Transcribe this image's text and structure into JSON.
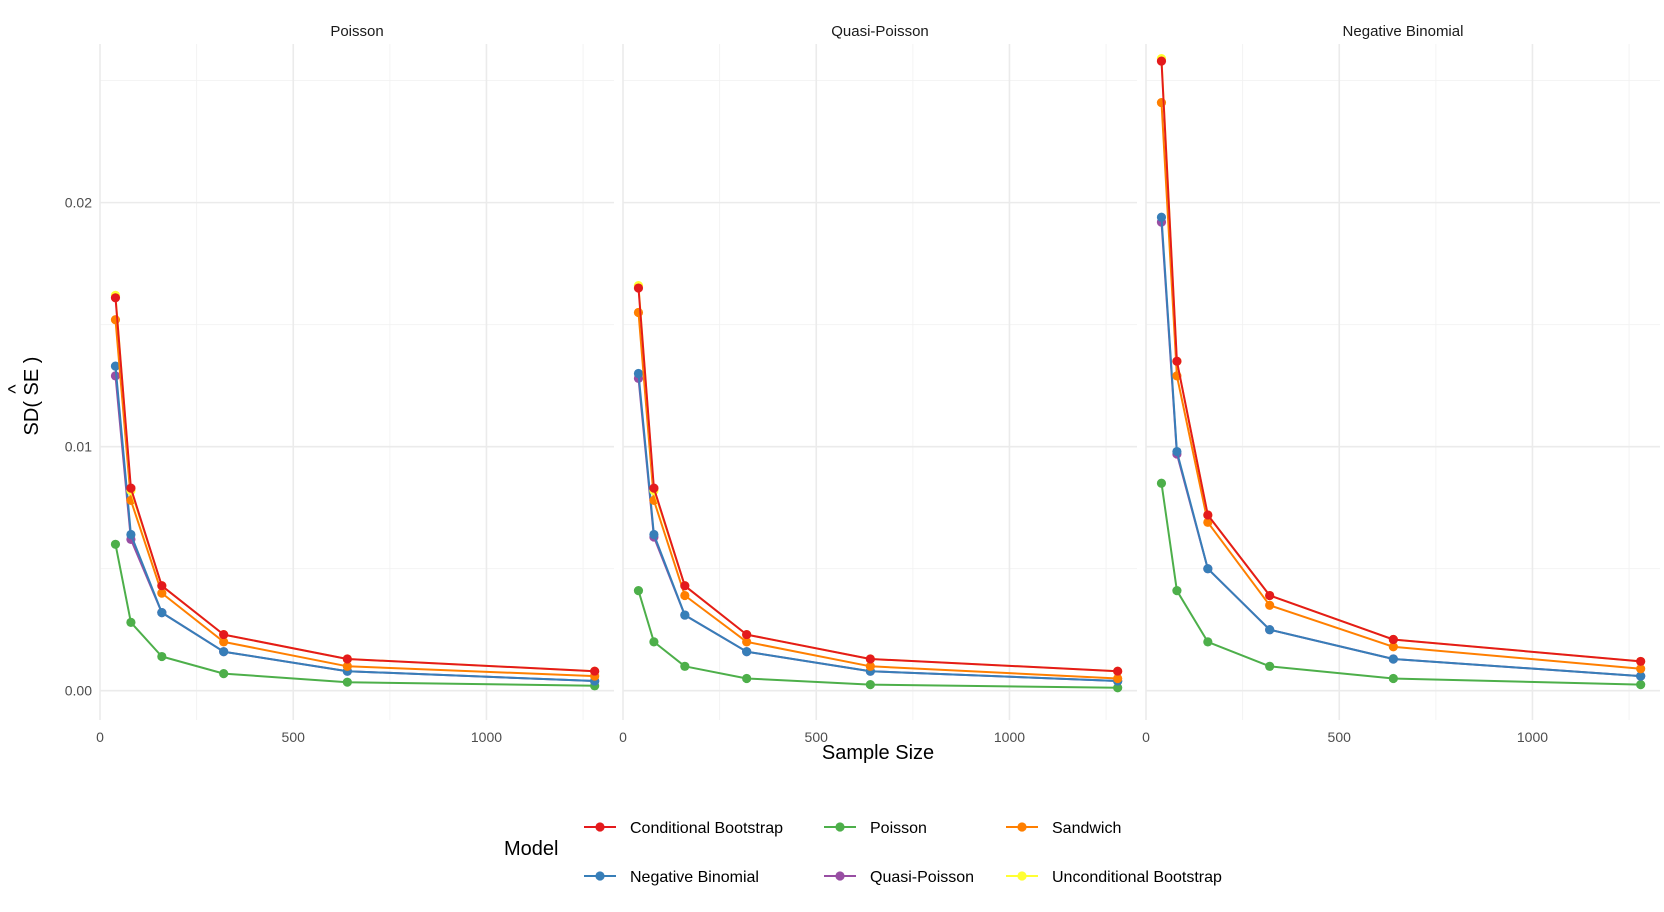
{
  "chart_data": {
    "type": "line",
    "xlabel": "Sample Size",
    "ylabel": "SD( SE )",
    "ylabel_hat_char": "^",
    "x": [
      40,
      80,
      160,
      320,
      640,
      1280
    ],
    "xlim": [
      0,
      1330
    ],
    "ylim": [
      -0.0012,
      0.0265
    ],
    "x_ticks": [
      0,
      500,
      1000
    ],
    "x_tick_labels": [
      "0",
      "500",
      "1000"
    ],
    "y_ticks": [
      0,
      0.01,
      0.02
    ],
    "y_tick_labels": [
      "0.00",
      "0.01",
      "0.02"
    ],
    "grid": true,
    "legend_title": "Model",
    "legend_position": "bottom",
    "colors": {
      "Conditional Bootstrap": "#E41A1C",
      "Negative Binomial": "#377EB8",
      "Poisson": "#4DAF4A",
      "Quasi-Poisson": "#984EA3",
      "Sandwich": "#FF7F00",
      "Unconditional Bootstrap": "#FFFF33"
    },
    "legend_entries": [
      "Conditional Bootstrap",
      "Poisson",
      "Sandwich",
      "Negative Binomial",
      "Quasi-Poisson",
      "Unconditional Bootstrap"
    ],
    "series_order": [
      "Poisson",
      "Quasi-Poisson",
      "Negative Binomial",
      "Sandwich",
      "Unconditional Bootstrap",
      "Conditional Bootstrap"
    ],
    "panels": [
      {
        "title": "Poisson",
        "series": [
          {
            "name": "Conditional Bootstrap",
            "values": [
              0.0161,
              0.0083,
              0.0043,
              0.0023,
              0.0013,
              0.0008
            ]
          },
          {
            "name": "Negative Binomial",
            "values": [
              0.0133,
              0.0064,
              0.0032,
              0.0016,
              0.0008,
              0.0004
            ]
          },
          {
            "name": "Poisson",
            "values": [
              0.006,
              0.0028,
              0.0014,
              0.0007,
              0.00035,
              0.0002
            ]
          },
          {
            "name": "Quasi-Poisson",
            "values": [
              0.0129,
              0.0062,
              0.0032,
              0.0016,
              0.0008,
              0.0004
            ]
          },
          {
            "name": "Sandwich",
            "values": [
              0.0152,
              0.0078,
              0.004,
              0.002,
              0.001,
              0.0006
            ]
          },
          {
            "name": "Unconditional Bootstrap",
            "values": [
              0.0162,
              0.0082,
              0.0043,
              0.0023,
              0.0013,
              0.0008
            ]
          }
        ]
      },
      {
        "title": "Quasi-Poisson",
        "series": [
          {
            "name": "Conditional Bootstrap",
            "values": [
              0.0165,
              0.0083,
              0.0043,
              0.0023,
              0.0013,
              0.0008
            ]
          },
          {
            "name": "Negative Binomial",
            "values": [
              0.013,
              0.0064,
              0.0031,
              0.0016,
              0.0008,
              0.0004
            ]
          },
          {
            "name": "Poisson",
            "values": [
              0.0041,
              0.002,
              0.001,
              0.0005,
              0.00025,
              0.00012
            ]
          },
          {
            "name": "Quasi-Poisson",
            "values": [
              0.0128,
              0.0063,
              0.0031,
              0.0016,
              0.0008,
              0.0004
            ]
          },
          {
            "name": "Sandwich",
            "values": [
              0.0155,
              0.0078,
              0.0039,
              0.002,
              0.001,
              0.0005
            ]
          },
          {
            "name": "Unconditional Bootstrap",
            "values": [
              0.0166,
              0.0082,
              0.0043,
              0.0023,
              0.0013,
              0.0008
            ]
          }
        ]
      },
      {
        "title": "Negative Binomial",
        "series": [
          {
            "name": "Conditional Bootstrap",
            "values": [
              0.0258,
              0.0135,
              0.0072,
              0.0039,
              0.0021,
              0.0012
            ]
          },
          {
            "name": "Negative Binomial",
            "values": [
              0.0194,
              0.0098,
              0.005,
              0.0025,
              0.0013,
              0.0006
            ]
          },
          {
            "name": "Poisson",
            "values": [
              0.0085,
              0.0041,
              0.002,
              0.001,
              0.0005,
              0.00025
            ]
          },
          {
            "name": "Quasi-Poisson",
            "values": [
              0.0192,
              0.0097,
              0.005,
              0.0025,
              0.0013,
              0.0006
            ]
          },
          {
            "name": "Sandwich",
            "values": [
              0.0241,
              0.0129,
              0.0069,
              0.0035,
              0.0018,
              0.0009
            ]
          },
          {
            "name": "Unconditional Bootstrap",
            "values": [
              0.0259,
              0.0135,
              0.0072,
              0.0039,
              0.0021,
              0.0012
            ]
          }
        ]
      }
    ]
  }
}
